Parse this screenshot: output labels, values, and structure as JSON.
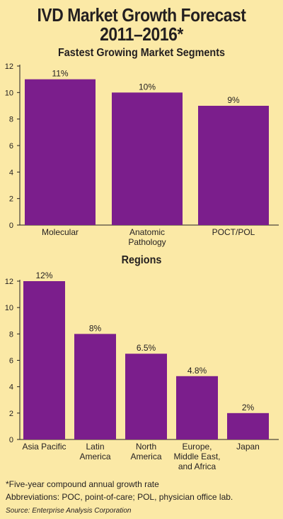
{
  "title_line1": "IVD Market Growth Forecast",
  "title_line2": "2011–2016*",
  "chart_data": [
    {
      "type": "bar",
      "title": "Fastest Growing Market Segments",
      "categories": [
        "Molecular",
        "Anatomic\nPathology",
        "POCT/POL"
      ],
      "values": [
        11,
        10,
        9
      ],
      "data_labels": [
        "11%",
        "10%",
        "9%"
      ],
      "ylim": [
        0,
        12
      ],
      "yticks": [
        0,
        2,
        4,
        6,
        8,
        10,
        12
      ],
      "bar_color": "#7b1e8c",
      "grid": false
    },
    {
      "type": "bar",
      "title": "Regions",
      "categories": [
        "Asia Pacific",
        "Latin\nAmerica",
        "North\nAmerica",
        "Europe,\nMiddle East,\nand Africa",
        "Japan"
      ],
      "values": [
        12,
        8,
        6.5,
        4.8,
        2
      ],
      "data_labels": [
        "12%",
        "8%",
        "6.5%",
        "4.8%",
        "2%"
      ],
      "ylim": [
        0,
        12
      ],
      "yticks": [
        0,
        2,
        4,
        6,
        8,
        10,
        12
      ],
      "bar_color": "#7b1e8c",
      "grid": false
    }
  ],
  "footnote": "*Five-year compound annual growth rate",
  "abbreviations": "Abbreviations: POC, point-of-care; POL, physician office lab.",
  "source": "Source: Enterprise Analysis Corporation"
}
